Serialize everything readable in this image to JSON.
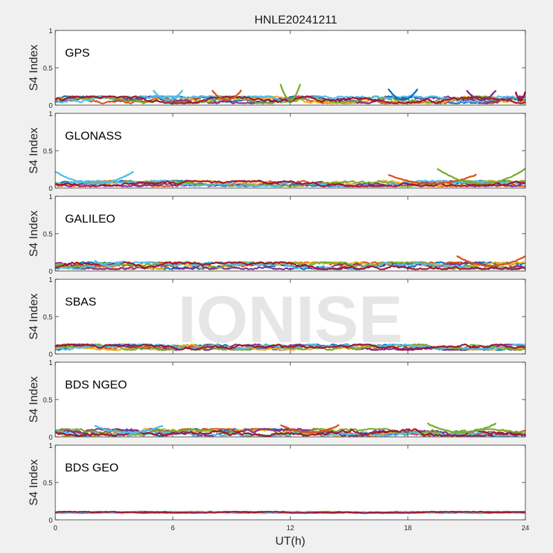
{
  "chart_data": {
    "type": "scatter",
    "title": "HNLE20241211",
    "xlabel": "UT(h)",
    "ylabel": "S4 Index",
    "xlim": [
      0,
      24
    ],
    "ylim": [
      0,
      1
    ],
    "xticks": [
      "0",
      "6",
      "12",
      "18",
      "24"
    ],
    "yticks": [
      "0",
      "0.5",
      "1"
    ],
    "grid": false,
    "watermark": "IONISE",
    "series_colors": [
      "#0072bd",
      "#d95319",
      "#edb120",
      "#7e2f8e",
      "#77ac30",
      "#4dbeee",
      "#a2142f"
    ],
    "panels": [
      {
        "name": "GPS",
        "baseline": 0.07,
        "spread": 0.05,
        "arcs": [
          [
            5.0,
            6.5,
            0.2
          ],
          [
            8.0,
            9.5,
            0.2
          ],
          [
            11.5,
            12.5,
            0.28
          ],
          [
            17.0,
            18.5,
            0.22
          ],
          [
            21.0,
            22.5,
            0.2
          ],
          [
            23.5,
            24.0,
            0.18
          ]
        ]
      },
      {
        "name": "GLONASS",
        "baseline": 0.06,
        "spread": 0.04,
        "arcs": [
          [
            0.0,
            4.0,
            0.22
          ],
          [
            17.0,
            21.5,
            0.18
          ],
          [
            19.5,
            24.0,
            0.26
          ]
        ]
      },
      {
        "name": "GALILEO",
        "baseline": 0.07,
        "spread": 0.05,
        "arcs": [
          [
            2.0,
            3.5,
            0.14
          ],
          [
            20.5,
            24.0,
            0.2
          ]
        ]
      },
      {
        "name": "SBAS",
        "baseline": 0.09,
        "spread": 0.04,
        "arcs": []
      },
      {
        "name": "BDS NGEO",
        "baseline": 0.06,
        "spread": 0.05,
        "arcs": [
          [
            2.0,
            5.5,
            0.15
          ],
          [
            11.5,
            14.5,
            0.16
          ],
          [
            19.0,
            22.5,
            0.18
          ]
        ]
      },
      {
        "name": "BDS GEO",
        "baseline": 0.1,
        "spread": 0.01,
        "arcs": []
      }
    ]
  }
}
